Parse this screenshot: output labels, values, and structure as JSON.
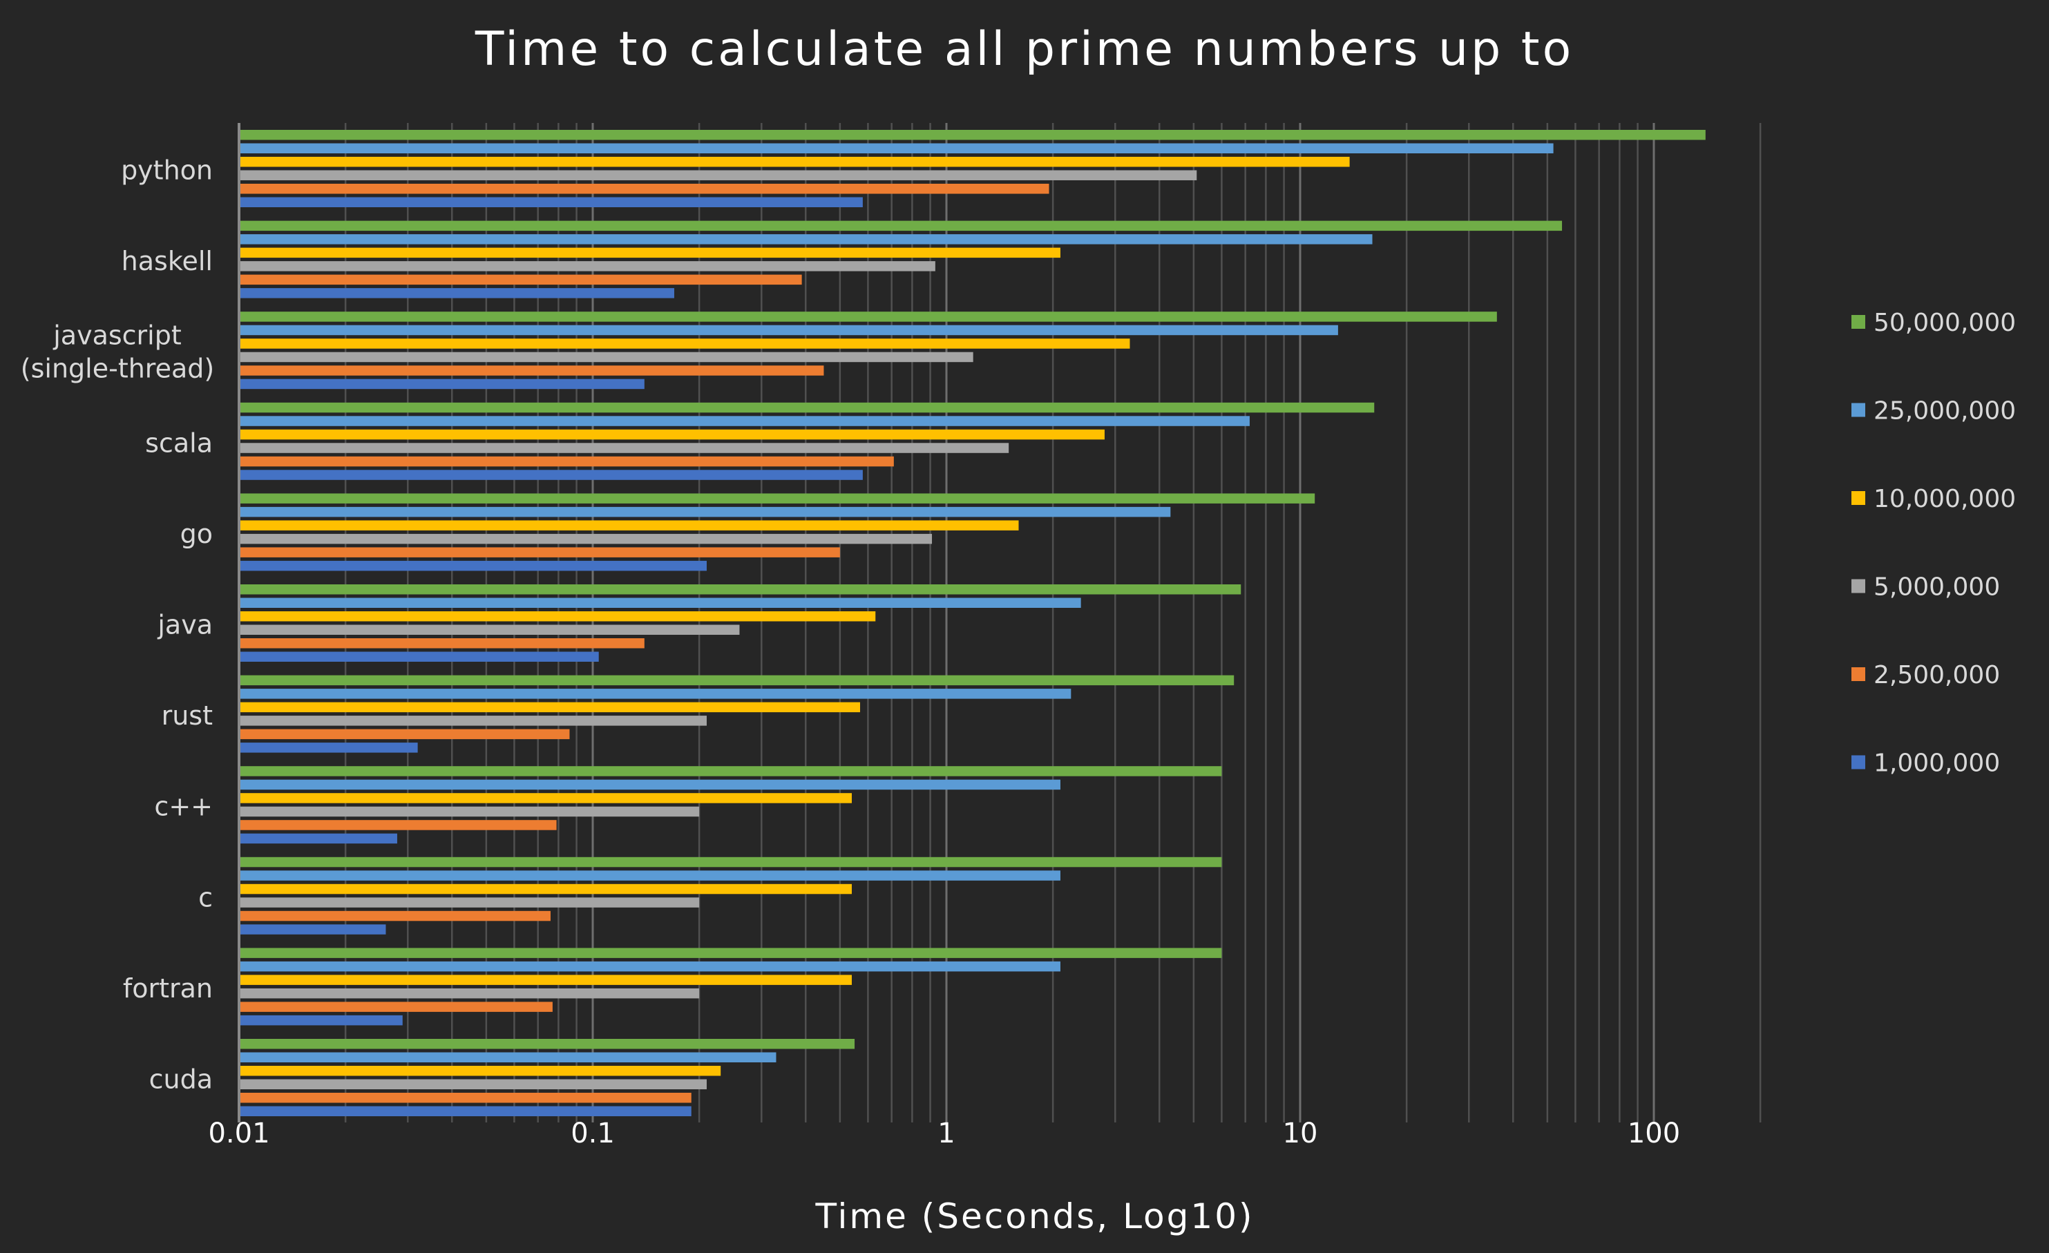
{
  "chart_data": {
    "type": "bar",
    "orientation": "horizontal",
    "title": "Time to calculate all prime numbers up to",
    "xlabel": "Time (Seconds, Log10)",
    "ylabel": "",
    "xscale": "log10",
    "xlim": [
      0.01,
      260
    ],
    "xticks": [
      "0.01",
      "0.1",
      "1",
      "10",
      "100"
    ],
    "grid": true,
    "legend_position": "right",
    "categories": [
      [
        "python"
      ],
      [
        "haskell"
      ],
      [
        "javascript",
        "(single-thread)"
      ],
      [
        "scala"
      ],
      [
        "go"
      ],
      [
        "java"
      ],
      [
        "rust"
      ],
      [
        "c++"
      ],
      [
        "c"
      ],
      [
        "fortran"
      ],
      [
        "cuda"
      ]
    ],
    "series": [
      {
        "name": "50,000,000",
        "color": "#70ad47",
        "values": [
          140,
          55,
          36,
          16.2,
          11,
          6.8,
          6.5,
          6,
          6,
          6,
          0.55
        ]
      },
      {
        "name": "25,000,000",
        "color": "#5b9bd5",
        "values": [
          52,
          16,
          12.8,
          7.2,
          4.3,
          2.4,
          2.25,
          2.1,
          2.1,
          2.1,
          0.33
        ]
      },
      {
        "name": "10,000,000",
        "color": "#ffc000",
        "values": [
          13.8,
          2.1,
          3.3,
          2.8,
          1.6,
          0.63,
          0.57,
          0.54,
          0.54,
          0.54,
          0.23
        ]
      },
      {
        "name": "5,000,000",
        "color": "#a5a5a5",
        "values": [
          5.1,
          0.93,
          1.19,
          1.5,
          0.91,
          0.26,
          0.21,
          0.2,
          0.2,
          0.2,
          0.21
        ]
      },
      {
        "name": "2,500,000",
        "color": "#ed7d31",
        "values": [
          1.95,
          0.39,
          0.45,
          0.71,
          0.5,
          0.14,
          0.086,
          0.079,
          0.076,
          0.077,
          0.19
        ]
      },
      {
        "name": "1,000,000",
        "color": "#4472c4",
        "values": [
          0.58,
          0.17,
          0.14,
          0.58,
          0.21,
          0.104,
          0.032,
          0.028,
          0.026,
          0.029,
          0.19
        ]
      }
    ]
  }
}
